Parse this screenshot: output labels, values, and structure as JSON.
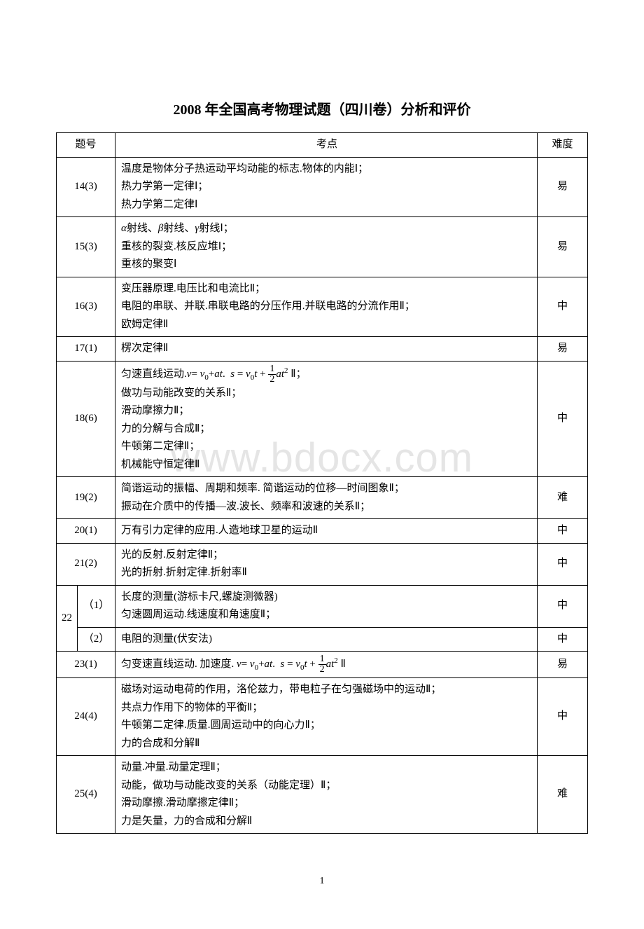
{
  "title": "2008 年全国高考物理试题（四川卷）分析和评价",
  "watermark": "www.bdocx.com",
  "page_number": "1",
  "headers": {
    "qnum": "题号",
    "points": "考点",
    "difficulty": "难度"
  },
  "rows": [
    {
      "qnum": "14(3)",
      "points_html": "温度是物体分子热运动平均动能的标志.物体的内能Ⅰ；<br>热力学第一定律Ⅰ；<br>热力学第二定律Ⅰ",
      "diff": "易"
    },
    {
      "qnum": "15(3)",
      "points_html": "<span class='italic'>α</span>射线、<span class='italic'>β</span>射线、<span class='italic'>γ</span>射线Ⅰ；<br>重核的裂变.核反应堆Ⅰ；<br>重核的聚变Ⅰ",
      "diff": "易"
    },
    {
      "qnum": "16(3)",
      "points_html": "变压器原理.电压比和电流比Ⅱ；<br>电阻的串联、并联.串联电路的分压作用.并联电路的分流作用Ⅱ；<br>欧姆定律Ⅱ",
      "diff": "中"
    },
    {
      "qnum": "17(1)",
      "points_html": "楞次定律Ⅱ",
      "diff": "易"
    },
    {
      "qnum": "18(6)",
      "points_html": "匀速直线运动.<span class='italic'>v</span>= <span class='italic'>v</span><span class='sub'>0</span>+<span class='italic'>at</span>. &nbsp;<span class='italic'>s</span> = <span class='italic'>v</span><span class='sub'>0</span><span class='italic'>t</span> + <span class='frac'><span class='num'>1</span><span class='den'>2</span></span><span class='italic'>at</span><sup style='font-size:11px'>2</sup> Ⅱ；<br>做功与动能改变的关系Ⅱ；<br>滑动摩擦力Ⅱ；<br>力的分解与合成Ⅱ；<br>牛顿第二定律Ⅱ；<br>机械能守恒定律Ⅱ",
      "diff": "中"
    },
    {
      "qnum": "19(2)",
      "points_html": "简谐运动的振幅、周期和频率. 简谐运动的位移—时间图象Ⅱ；<br>振动在介质中的传播—波.波长、频率和波速的关系Ⅱ；",
      "diff": "难"
    },
    {
      "qnum": "20(1)",
      "points_html": "万有引力定律的应用.人造地球卫星的运动Ⅱ",
      "diff": "中"
    },
    {
      "qnum": "21(2)",
      "points_html": "光的反射.反射定律Ⅱ；<br>光的折射.折射定律.折射率Ⅱ",
      "diff": "中"
    }
  ],
  "nested": {
    "parent": "22",
    "subs": [
      {
        "sub": "（1）",
        "points_html": "长度的测量(游标卡尺,螺旋测微器)<br>匀速圆周运动.线速度和角速度Ⅱ；",
        "diff": "中"
      },
      {
        "sub": "（2）",
        "points_html": "电阻的测量(伏安法)",
        "diff": "中"
      }
    ]
  },
  "rows2": [
    {
      "qnum": "23(1)",
      "points_html": "匀变速直线运动. 加速度. <span class='italic'>v</span>= <span class='italic'>v</span><span class='sub'>0</span>+<span class='italic'>at</span>. &nbsp;<span class='italic'>s</span> = <span class='italic'>v</span><span class='sub'>0</span><span class='italic'>t</span> + <span class='frac'><span class='num'>1</span><span class='den'>2</span></span><span class='italic'>at</span><sup style='font-size:11px'>2</sup> Ⅱ",
      "diff": "易"
    },
    {
      "qnum": "24(4)",
      "points_html": "磁场对运动电荷的作用，洛伦兹力，带电粒子在匀强磁场中的运动Ⅱ；<br>共点力作用下的物体的平衡Ⅱ；<br>牛顿第二定律.质量.圆周运动中的向心力Ⅱ；<br>力的合成和分解Ⅱ",
      "diff": "中"
    },
    {
      "qnum": "25(4)",
      "points_html": "动量.冲量.动量定理Ⅱ；<br>动能，做功与动能改变的关系（动能定理）Ⅱ；<br>滑动摩擦.滑动摩擦定律Ⅱ；<br>力是矢量，力的合成和分解Ⅱ",
      "diff": "难"
    }
  ]
}
